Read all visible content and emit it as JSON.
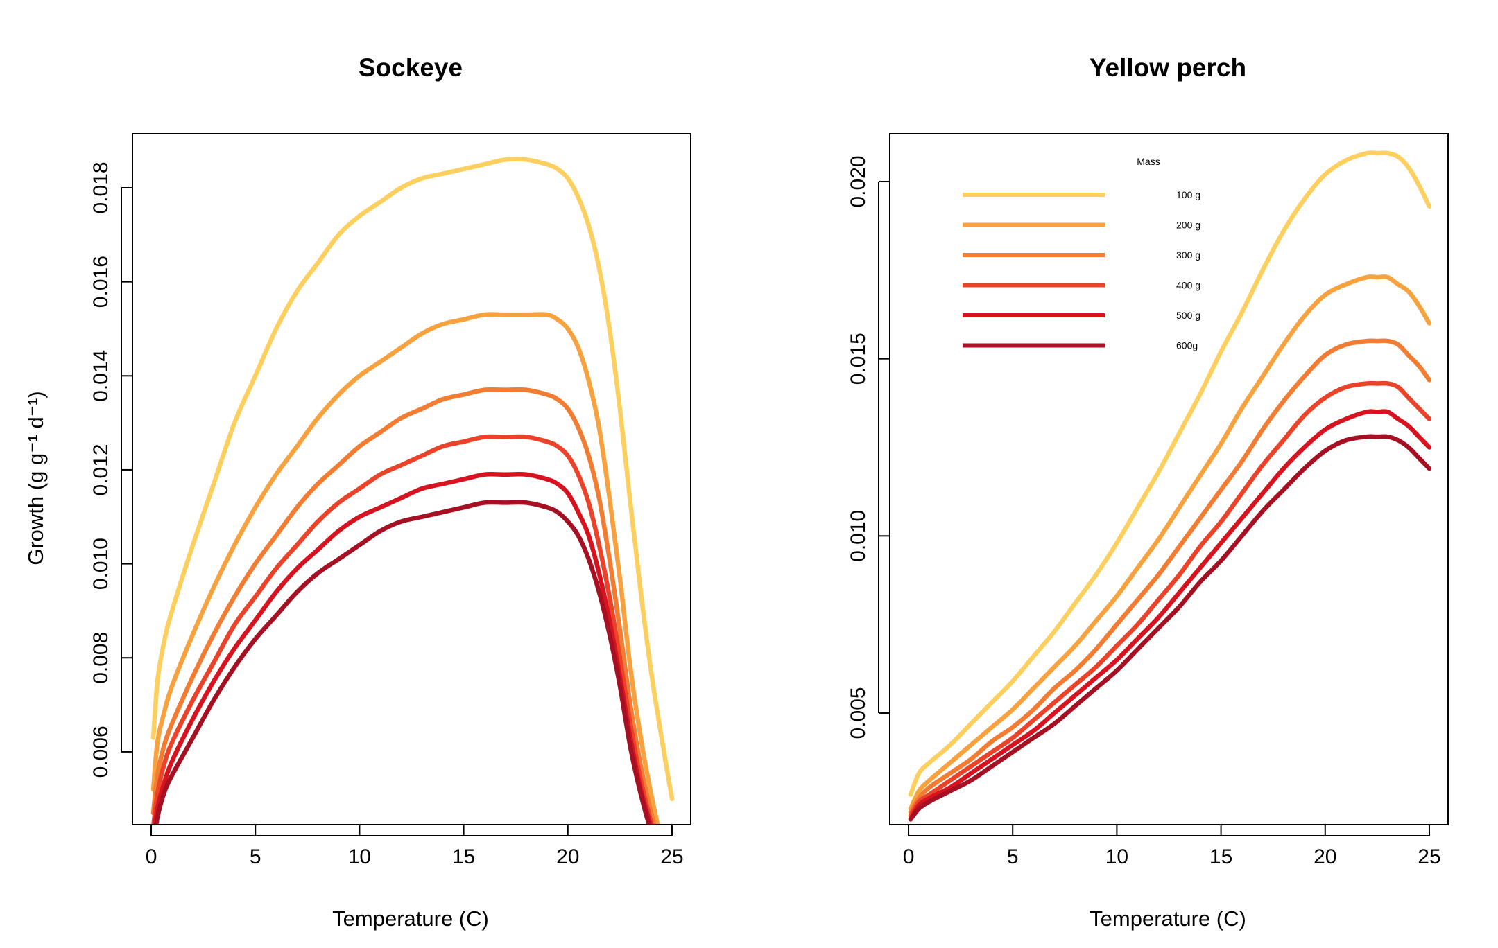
{
  "chart_data": [
    {
      "type": "line",
      "title": "Sockeye",
      "xlabel": "Temperature (C)",
      "ylabel": "Growth (g g⁻¹ d⁻¹)",
      "xlim": [
        -0.9,
        25.9
      ],
      "ylim": [
        0.00445,
        0.01915
      ],
      "xticks": [
        "0",
        "5",
        "10",
        "15",
        "20",
        "25"
      ],
      "yticks": [
        "0.006",
        "0.008",
        "0.010",
        "0.012",
        "0.014",
        "0.016",
        "0.018"
      ],
      "colors": [
        "#FCCF5F",
        "#F7A23F",
        "#F27C31",
        "#EB432A",
        "#D81320",
        "#A51022"
      ],
      "x": [
        0.1,
        0.3,
        0.6,
        1,
        2,
        3,
        4,
        5,
        6,
        7,
        8,
        9,
        10,
        11,
        12,
        13,
        14,
        15,
        16,
        17,
        18,
        19,
        19.5,
        20,
        20.5,
        21,
        21.5,
        22,
        22.5,
        23,
        23.5,
        24,
        24.5,
        25
      ],
      "series": [
        {
          "values": [
            0.0063,
            0.0075,
            0.0083,
            0.009,
            0.0104,
            0.0117,
            0.013,
            0.014,
            0.015,
            0.0158,
            0.0164,
            0.017,
            0.0174,
            0.0177,
            0.018,
            0.0182,
            0.0183,
            0.0184,
            0.0185,
            0.0186,
            0.0186,
            0.0185,
            0.0184,
            0.0182,
            0.0178,
            0.0172,
            0.0163,
            0.015,
            0.0133,
            0.0113,
            0.0094,
            0.0077,
            0.0063,
            0.005
          ]
        },
        {
          "values": [
            0.0052,
            0.0062,
            0.0068,
            0.0074,
            0.0085,
            0.0095,
            0.0104,
            0.0112,
            0.0119,
            0.0125,
            0.0131,
            0.0136,
            0.014,
            0.0143,
            0.0146,
            0.0149,
            0.0151,
            0.0152,
            0.0153,
            0.0153,
            0.0153,
            0.0153,
            0.0152,
            0.015,
            0.0146,
            0.0139,
            0.0129,
            0.0114,
            0.0097,
            0.0078,
            0.0063,
            0.0051,
            0.0041,
            0.0035
          ]
        },
        {
          "values": [
            0.0047,
            0.0055,
            0.0061,
            0.0066,
            0.0076,
            0.0085,
            0.0093,
            0.01,
            0.0106,
            0.0112,
            0.0117,
            0.0121,
            0.0125,
            0.0128,
            0.0131,
            0.0133,
            0.0135,
            0.0136,
            0.0137,
            0.0137,
            0.0137,
            0.0136,
            0.0135,
            0.0133,
            0.0129,
            0.0123,
            0.0114,
            0.0101,
            0.0086,
            0.007,
            0.0057,
            0.0047,
            0.0039,
            0.0034
          ]
        },
        {
          "values": [
            0.0044,
            0.0051,
            0.0057,
            0.0062,
            0.0071,
            0.0079,
            0.0087,
            0.0093,
            0.0099,
            0.0104,
            0.0109,
            0.0113,
            0.0116,
            0.0119,
            0.0121,
            0.0123,
            0.0125,
            0.0126,
            0.0127,
            0.0127,
            0.0127,
            0.0126,
            0.0125,
            0.0123,
            0.0119,
            0.0113,
            0.0104,
            0.0093,
            0.008,
            0.0066,
            0.0054,
            0.0045,
            0.0038,
            0.0033
          ]
        },
        {
          "values": [
            0.0042,
            0.0048,
            0.0053,
            0.0058,
            0.0067,
            0.0075,
            0.0082,
            0.0088,
            0.0094,
            0.0099,
            0.0103,
            0.0107,
            0.011,
            0.0112,
            0.0114,
            0.0116,
            0.0117,
            0.0118,
            0.0119,
            0.0119,
            0.0119,
            0.0118,
            0.0117,
            0.0115,
            0.0111,
            0.0106,
            0.0098,
            0.0088,
            0.0076,
            0.0063,
            0.0052,
            0.0044,
            0.0037,
            0.0033
          ]
        },
        {
          "values": [
            0.004,
            0.0046,
            0.0051,
            0.0055,
            0.0063,
            0.0071,
            0.0078,
            0.0084,
            0.0089,
            0.0094,
            0.0098,
            0.0101,
            0.0104,
            0.0107,
            0.0109,
            0.011,
            0.0111,
            0.0112,
            0.0113,
            0.0113,
            0.0113,
            0.0112,
            0.0111,
            0.0109,
            0.0106,
            0.0101,
            0.0094,
            0.0085,
            0.0074,
            0.0061,
            0.0051,
            0.0043,
            0.0037,
            0.0033
          ]
        }
      ]
    },
    {
      "type": "line",
      "title": "Yellow perch",
      "xlabel": "Temperature (C)",
      "ylabel": "",
      "xlim": [
        -0.9,
        25.9
      ],
      "ylim": [
        0.00185,
        0.02135
      ],
      "xticks": [
        "0",
        "5",
        "10",
        "15",
        "20",
        "25"
      ],
      "yticks": [
        "0.005",
        "0.010",
        "0.015",
        "0.020"
      ],
      "colors": [
        "#FCCF5F",
        "#F7A23F",
        "#F27C31",
        "#EB432A",
        "#D81320",
        "#A51022"
      ],
      "legend": {
        "title": "Mass",
        "labels": [
          "100 g",
          "200 g",
          "300 g",
          "400 g",
          "500 g",
          "600g"
        ],
        "placement": "top-left"
      },
      "x": [
        0.1,
        0.5,
        1,
        2,
        3,
        4,
        5,
        6,
        7,
        8,
        9,
        10,
        11,
        12,
        13,
        14,
        15,
        16,
        17,
        18,
        19,
        20,
        21,
        22,
        22.5,
        23,
        23.5,
        24,
        24.5,
        25
      ],
      "series": [
        {
          "values": [
            0.0027,
            0.0033,
            0.0036,
            0.0041,
            0.0047,
            0.0053,
            0.0059,
            0.0066,
            0.0073,
            0.0081,
            0.0089,
            0.0098,
            0.0108,
            0.0118,
            0.0129,
            0.014,
            0.0152,
            0.0163,
            0.0175,
            0.0186,
            0.0195,
            0.0202,
            0.0206,
            0.0208,
            0.0208,
            0.0208,
            0.0207,
            0.0204,
            0.0199,
            0.0193
          ]
        },
        {
          "values": [
            0.0023,
            0.0028,
            0.0031,
            0.0036,
            0.0041,
            0.0046,
            0.0051,
            0.0057,
            0.0063,
            0.0069,
            0.0076,
            0.0083,
            0.0091,
            0.0099,
            0.0108,
            0.0117,
            0.0126,
            0.0136,
            0.0145,
            0.0154,
            0.0162,
            0.0168,
            0.0171,
            0.0173,
            0.0173,
            0.0173,
            0.0171,
            0.0169,
            0.0165,
            0.016
          ]
        },
        {
          "values": [
            0.0022,
            0.0026,
            0.0029,
            0.0033,
            0.0037,
            0.0042,
            0.0046,
            0.0051,
            0.0057,
            0.0062,
            0.0068,
            0.0075,
            0.0082,
            0.0089,
            0.0097,
            0.0105,
            0.0113,
            0.0121,
            0.013,
            0.0138,
            0.0145,
            0.0151,
            0.0154,
            0.0155,
            0.0155,
            0.0155,
            0.0154,
            0.0151,
            0.0148,
            0.0144
          ]
        },
        {
          "values": [
            0.0021,
            0.0025,
            0.0027,
            0.0031,
            0.0035,
            0.0039,
            0.0043,
            0.0048,
            0.0053,
            0.0058,
            0.0063,
            0.0069,
            0.0075,
            0.0082,
            0.0089,
            0.0097,
            0.0104,
            0.0112,
            0.012,
            0.0127,
            0.0134,
            0.0139,
            0.0142,
            0.0143,
            0.0143,
            0.0143,
            0.0142,
            0.0139,
            0.0136,
            0.0133
          ]
        },
        {
          "values": [
            0.002,
            0.0024,
            0.0026,
            0.0029,
            0.0033,
            0.0037,
            0.0041,
            0.0045,
            0.005,
            0.0055,
            0.006,
            0.0065,
            0.0071,
            0.0077,
            0.0084,
            0.0091,
            0.0098,
            0.0105,
            0.0112,
            0.0119,
            0.0125,
            0.013,
            0.0133,
            0.0135,
            0.0135,
            0.0135,
            0.0133,
            0.0131,
            0.0128,
            0.0125
          ]
        },
        {
          "values": [
            0.002,
            0.0023,
            0.0025,
            0.0028,
            0.0031,
            0.0035,
            0.0039,
            0.0043,
            0.0047,
            0.0052,
            0.0057,
            0.0062,
            0.0068,
            0.0074,
            0.008,
            0.0087,
            0.0093,
            0.01,
            0.0107,
            0.0113,
            0.0119,
            0.0124,
            0.0127,
            0.0128,
            0.0128,
            0.0128,
            0.0127,
            0.0125,
            0.0122,
            0.0119
          ]
        }
      ]
    }
  ]
}
